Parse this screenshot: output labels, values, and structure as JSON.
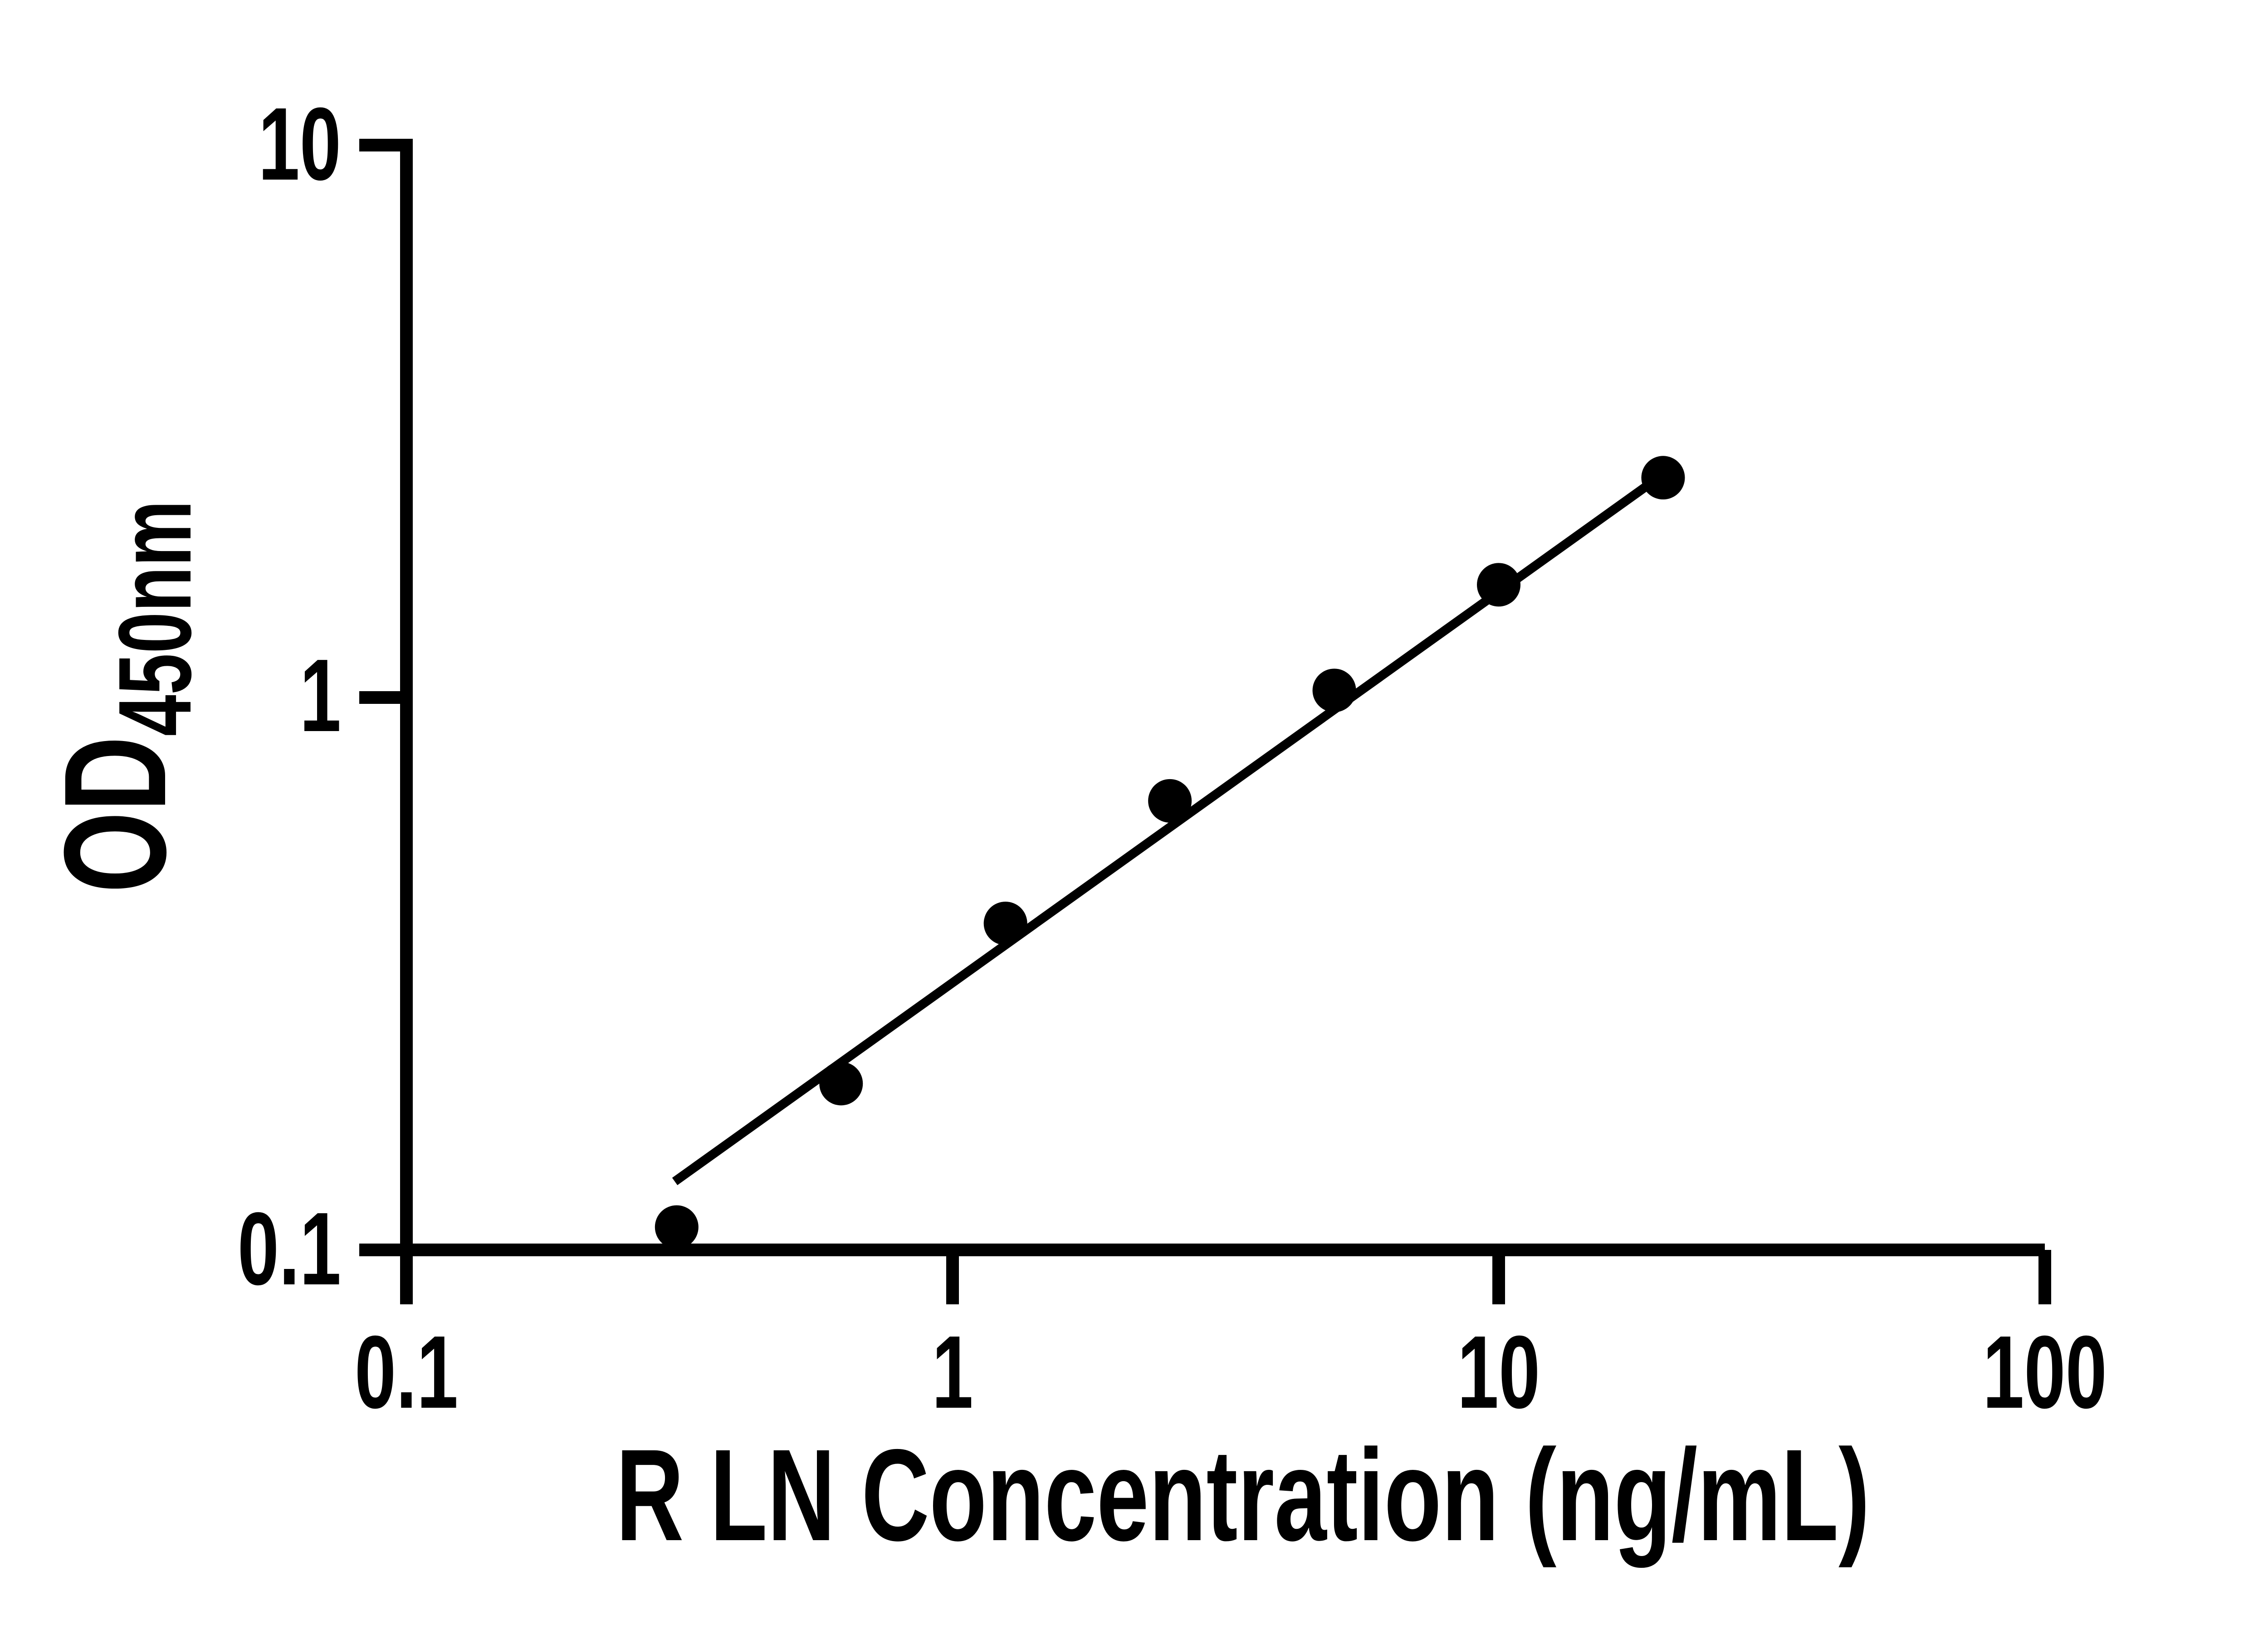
{
  "figure": {
    "background_color": "#ffffff",
    "ink_color": "#000000"
  },
  "y_axis": {
    "title_main": "OD",
    "title_subscript": "450nm",
    "tick_labels": [
      "10",
      "1",
      "0.1"
    ],
    "scale": "log10"
  },
  "x_axis": {
    "title": "R LN Concentration (ng/mL)",
    "tick_labels": [
      "0.1",
      "1",
      "10",
      "100"
    ],
    "scale": "log10"
  },
  "chart_data": {
    "type": "scatter",
    "title": "",
    "xlabel": "R LN Concentration (ng/mL)",
    "ylabel": "OD450nm",
    "x_scale": "log10",
    "y_scale": "log10",
    "xlim": [
      0.1,
      100
    ],
    "ylim": [
      0.1,
      10
    ],
    "x_ticks": [
      0.1,
      1,
      10,
      100
    ],
    "y_ticks": [
      0.1,
      1,
      10
    ],
    "grid": false,
    "legend": false,
    "marker_color": "#000000",
    "line_color": "#000000",
    "points": [
      {
        "x": 0.3125,
        "od": 0.11
      },
      {
        "x": 0.625,
        "od": 0.2
      },
      {
        "x": 1.25,
        "od": 0.39
      },
      {
        "x": 2.5,
        "od": 0.65
      },
      {
        "x": 5,
        "od": 1.03
      },
      {
        "x": 10,
        "od": 1.6
      },
      {
        "x": 20,
        "od": 2.5
      }
    ],
    "trend_line": {
      "x1": 0.31,
      "od1": 0.133,
      "x2": 19.6,
      "od2": 2.5
    }
  }
}
